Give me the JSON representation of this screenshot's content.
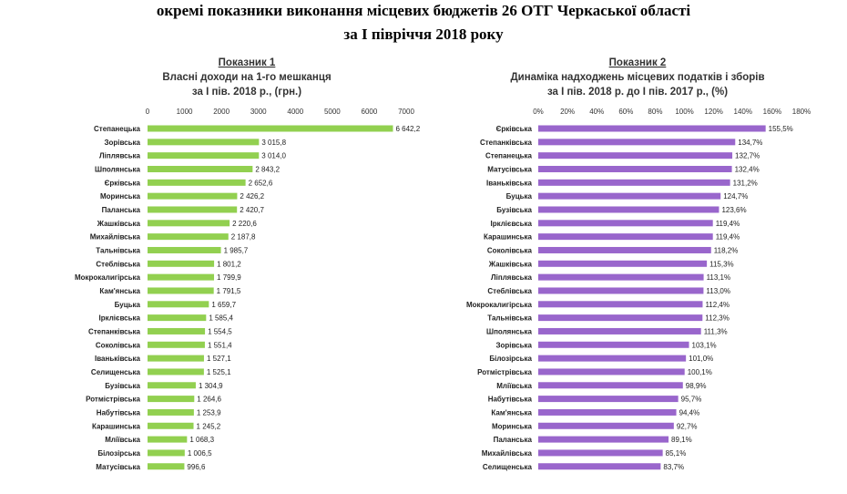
{
  "header": {
    "line1": "окремі показники виконання місцевих бюджетів 26 ОТГ  Черкаської області",
    "line2": "за І півріччя 2018 року"
  },
  "chart_data": [
    {
      "type": "bar",
      "orientation": "horizontal",
      "title_line1": "Показник 1",
      "title_line2": "Власні доходи на 1-го мешканця",
      "title_line3": "за І пів. 2018 р., (грн.)",
      "xlim": [
        0,
        7000
      ],
      "ticks": [
        "0",
        "1000",
        "2000",
        "3000",
        "4000",
        "5000",
        "6000",
        "7000"
      ],
      "bar_color": "#92d050",
      "categories": [
        "Степанецька",
        "Зорівська",
        "Ліплявська",
        "Шполянська",
        "Єрківська",
        "Моринська",
        "Паланська",
        "Жашківська",
        "Михайлівська",
        "Тальнівська",
        "Стеблівська",
        "Мокрокалигірська",
        "Кам'янська",
        "Буцька",
        "Ірклієвська",
        "Степанківська",
        "Соколівська",
        "Іваньківська",
        "Селищенська",
        "Бузівська",
        "Ротмістрівська",
        "Набутівська",
        "Карашинська",
        "Мліївська",
        "Білозірська",
        "Матусівська"
      ],
      "values": [
        6642.2,
        3015.8,
        3014.0,
        2843.2,
        2652.6,
        2426.2,
        2420.7,
        2220.6,
        2187.8,
        1985.7,
        1801.2,
        1799.9,
        1791.5,
        1659.7,
        1585.4,
        1554.5,
        1551.4,
        1527.1,
        1525.1,
        1304.9,
        1264.6,
        1253.9,
        1245.2,
        1068.3,
        1006.5,
        996.6
      ],
      "labels": [
        "6 642,2",
        "3 015,8",
        "3 014,0",
        "2 843,2",
        "2 652,6",
        "2 426,2",
        "2 420,7",
        "2 220,6",
        "2 187,8",
        "1 985,7",
        "1 801,2",
        "1 799,9",
        "1 791,5",
        "1 659,7",
        "1 585,4",
        "1 554,5",
        "1 551,4",
        "1 527,1",
        "1 525,1",
        "1 304,9",
        "1 264,6",
        "1 253,9",
        "1 245,2",
        "1 068,3",
        "1 006,5",
        "996,6"
      ]
    },
    {
      "type": "bar",
      "orientation": "horizontal",
      "title_line1": "Показник 2",
      "title_line2": "Динаміка надходжень місцевих податків і зборів",
      "title_line3": "за І пів. 2018 р. до І пів. 2017 р., (%)",
      "xlim": [
        0,
        180
      ],
      "ticks": [
        "0%",
        "20%",
        "40%",
        "60%",
        "80%",
        "100%",
        "120%",
        "140%",
        "160%",
        "180%"
      ],
      "bar_color": "#9966cc",
      "categories": [
        "Єрківська",
        "Степанківська",
        "Степанецька",
        "Матусівська",
        "Іваньківська",
        "Буцька",
        "Бузівська",
        "Ірклієвська",
        "Карашинська",
        "Соколівська",
        "Жашківська",
        "Ліплявська",
        "Стеблівська",
        "Мокрокалигірська",
        "Тальнівська",
        "Шполянська",
        "Зорівська",
        "Білозірська",
        "Ротмістрівська",
        "Мліївська",
        "Набутівська",
        "Кам'янська",
        "Моринська",
        "Паланська",
        "Михайлівська",
        "Селищенська"
      ],
      "values": [
        155.5,
        134.7,
        132.7,
        132.4,
        131.2,
        124.7,
        123.6,
        119.4,
        119.4,
        118.2,
        115.3,
        113.1,
        113.0,
        112.4,
        112.3,
        111.3,
        103.1,
        101.0,
        100.1,
        98.9,
        95.7,
        94.4,
        92.7,
        89.1,
        85.1,
        83.7
      ],
      "labels": [
        "155,5%",
        "134,7%",
        "132,7%",
        "132,4%",
        "131,2%",
        "124,7%",
        "123,6%",
        "119,4%",
        "119,4%",
        "118,2%",
        "115,3%",
        "113,1%",
        "113,0%",
        "112,4%",
        "112,3%",
        "111,3%",
        "103,1%",
        "101,0%",
        "100,1%",
        "98,9%",
        "95,7%",
        "94,4%",
        "92,7%",
        "89,1%",
        "85,1%",
        "83,7%"
      ]
    }
  ]
}
